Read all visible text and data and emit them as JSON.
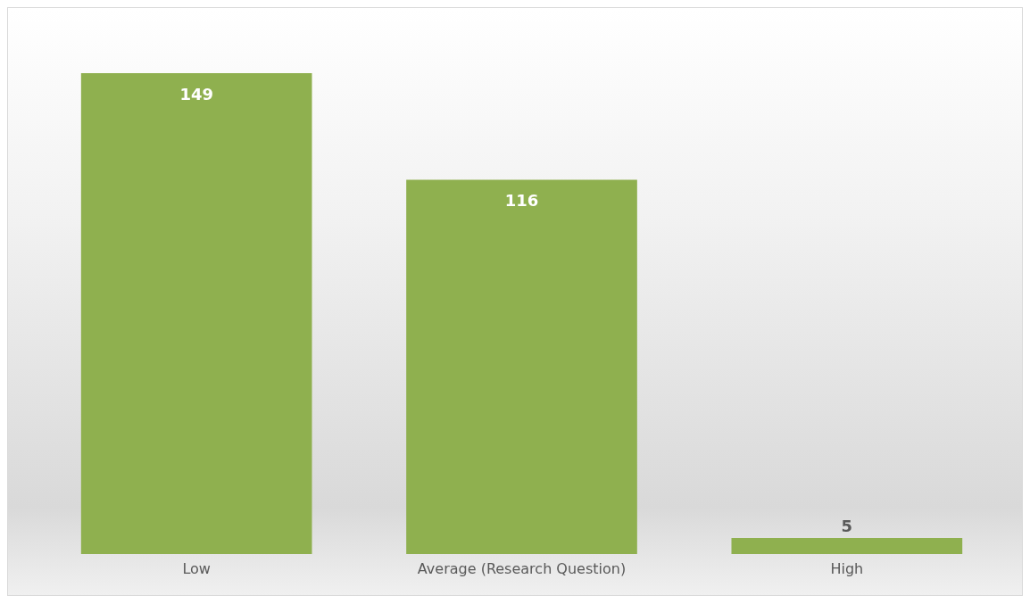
{
  "chart_data": {
    "type": "bar",
    "categories": [
      "Low",
      "Average (Research Question)",
      "High"
    ],
    "values": [
      149,
      116,
      5
    ],
    "color": "#8fb04f",
    "data_labels": true
  }
}
